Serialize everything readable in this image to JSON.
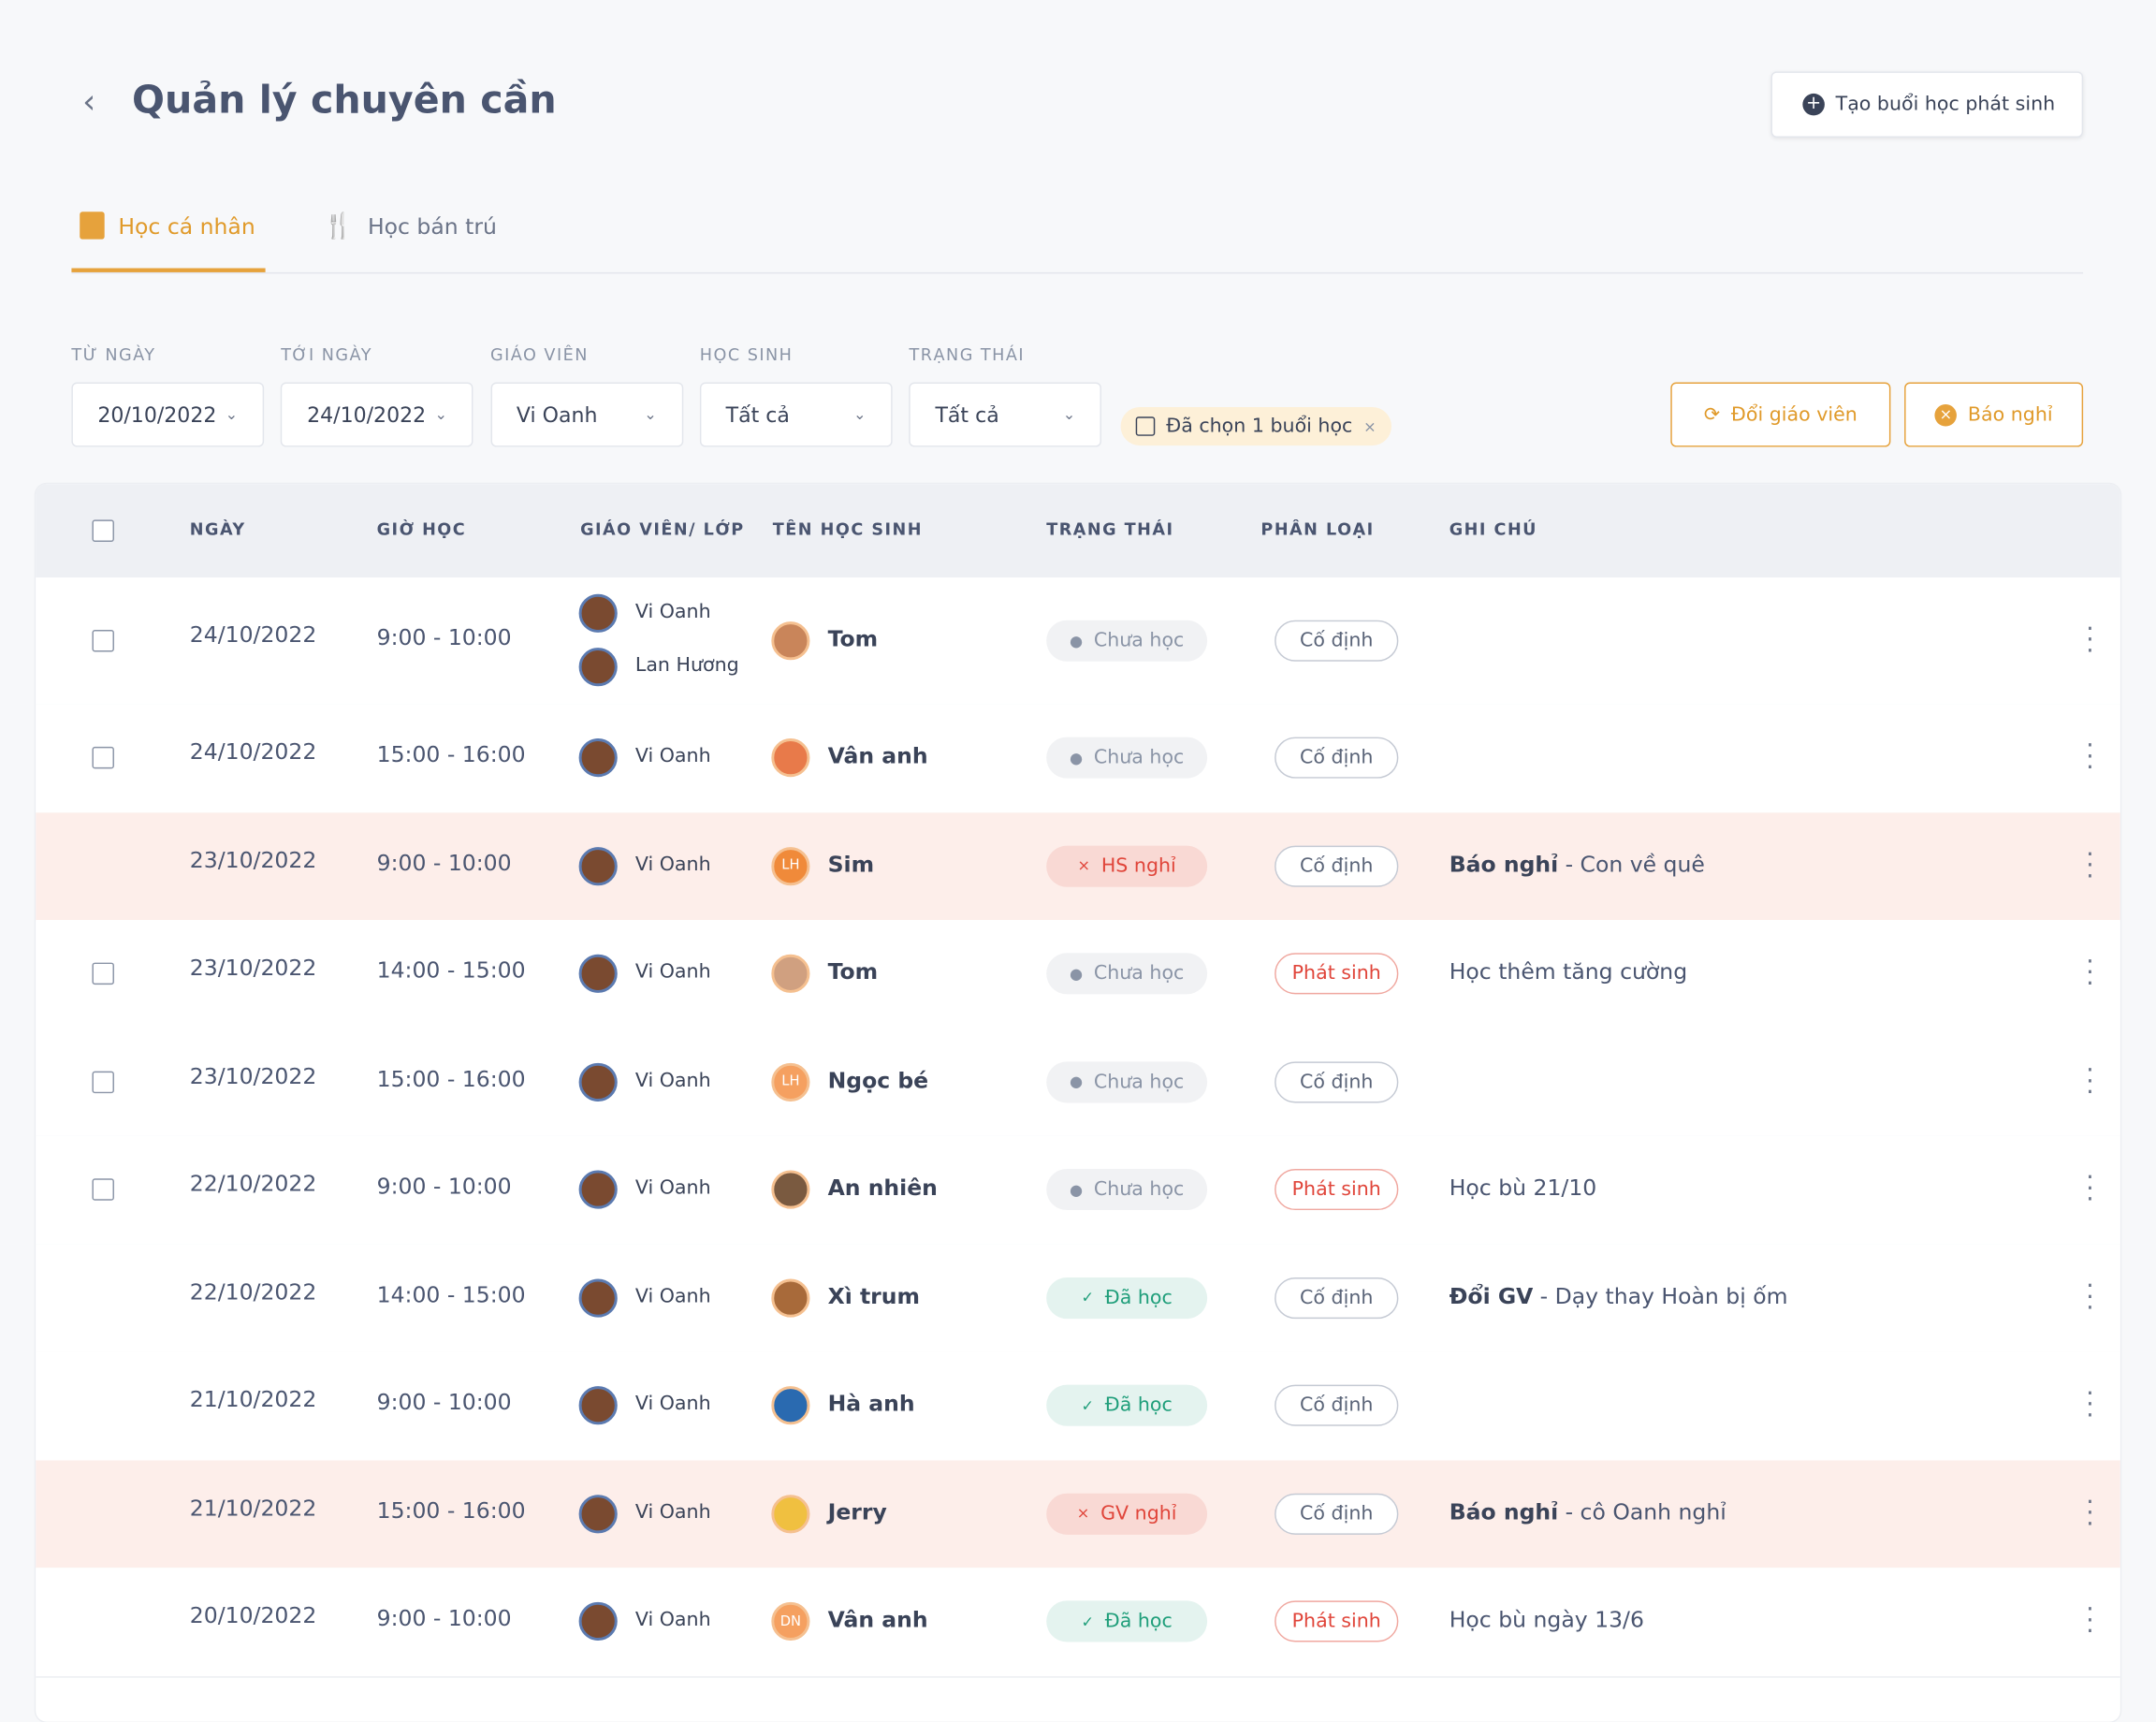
{
  "header": {
    "title": "Quản lý chuyên cần",
    "create_button": "Tạo buổi học phát sinh"
  },
  "tabs": [
    "Học cá nhân",
    "Học bán trú"
  ],
  "filters": [
    {
      "label": "TỪ NGÀY",
      "value": "20/10/2022"
    },
    {
      "label": "TỚI NGÀY",
      "value": "24/10/2022"
    },
    {
      "label": "GIÁO VIÊN",
      "value": "Vi Oanh"
    },
    {
      "label": "HỌC SINH",
      "value": "Tất cả"
    },
    {
      "label": "TRẠNG THÁI",
      "value": "Tất cả"
    }
  ],
  "selected_chip": "Đã chọn 1 buổi học",
  "actions": [
    "Đổi giáo viên",
    "Báo nghỉ"
  ],
  "table": {
    "columns": [
      "NGÀY",
      "GIỜ HỌC",
      "GIÁO VIÊN/ LỚP",
      "TÊN HỌC SINH",
      "TRẠNG THÁI",
      "PHÂN LOẠI",
      "GHI CHÚ"
    ],
    "rows": [
      {
        "date": "24/10/2022",
        "time": "9:00 - 10:00",
        "teachers": [
          "Vi Oanh",
          "Lan Hương"
        ],
        "student": "Tom",
        "status": "Chưa học",
        "status_color": "#8a94a6",
        "type": "Cố định",
        "type_color": "#5a6478",
        "selectable": true,
        "highlight": false
      },
      {
        "date": "24/10/2022",
        "time": "15:00 - 16:00",
        "teachers": [
          "Vi Oanh"
        ],
        "student": "Vân anh",
        "status": "Chưa học",
        "status_color": "#8a94a6",
        "type": "Cố định",
        "type_color": "#5a6478",
        "selectable": true,
        "highlight": false
      },
      {
        "date": "23/10/2022",
        "time": "9:00 - 10:00",
        "teachers": [
          "Vi Oanh"
        ],
        "student": "Sim",
        "initials": "LH",
        "status": "HS nghỉ",
        "status_color": "#e0453a",
        "type": "Cố định",
        "type_color": "#5a6478",
        "note_bold": "Báo nghỉ",
        "note": "- Con về quê",
        "selectable": false,
        "highlight": true
      },
      {
        "date": "23/10/2022",
        "time": "14:00 - 15:00",
        "teachers": [
          "Vi Oanh"
        ],
        "student": "Tom",
        "status": "Chưa học",
        "status_color": "#8a94a6",
        "type": "Phát sinh",
        "type_color": "#e0453a",
        "note": "Học thêm tăng cường",
        "selectable": true,
        "highlight": false
      },
      {
        "date": "23/10/2022",
        "time": "15:00 - 16:00",
        "teachers": [
          "Vi Oanh"
        ],
        "student": "Ngọc bé",
        "initials": "LH",
        "status": "Chưa học",
        "status_color": "#8a94a6",
        "type": "Cố định",
        "type_color": "#5a6478",
        "selectable": true,
        "highlight": false
      },
      {
        "date": "22/10/2022",
        "time": "9:00 - 10:00",
        "teachers": [
          "Vi Oanh"
        ],
        "student": "An nhiên",
        "status": "Chưa học",
        "status_color": "#8a94a6",
        "type": "Phát sinh",
        "type_color": "#e0453a",
        "note": "Học bù 21/10",
        "selectable": true,
        "highlight": false
      },
      {
        "date": "22/10/2022",
        "time": "14:00 - 15:00",
        "teachers": [
          "Vi Oanh"
        ],
        "student": "Xì trum",
        "status": "Đã học",
        "status_color": "#1f9e7a",
        "type": "Cố định",
        "type_color": "#5a6478",
        "note_bold": "Đổi GV",
        "note": "- Dạy thay Hoàn bị ốm",
        "selectable": false,
        "highlight": false
      },
      {
        "date": "21/10/2022",
        "time": "9:00 - 10:00",
        "teachers": [
          "Vi Oanh"
        ],
        "student": "Hà anh",
        "status": "Đã học",
        "status_color": "#1f9e7a",
        "type": "Cố định",
        "type_color": "#5a6478",
        "selectable": false,
        "highlight": false
      },
      {
        "date": "21/10/2022",
        "time": "15:00 - 16:00",
        "teachers": [
          "Vi Oanh"
        ],
        "student": "Jerry",
        "status": "GV nghỉ",
        "status_color": "#e0453a",
        "type": "Cố định",
        "type_color": "#5a6478",
        "note_bold": "Báo nghỉ",
        "note": "- cô Oanh nghỉ",
        "selectable": false,
        "highlight": true
      },
      {
        "date": "20/10/2022",
        "time": "9:00 - 10:00",
        "teachers": [
          "Vi Oanh"
        ],
        "student": "Vân anh",
        "initials": "DN",
        "status": "Đã học",
        "status_color": "#1f9e7a",
        "type": "Phát sinh",
        "type_color": "#e0453a",
        "note": "Học bù ngày 13/6",
        "selectable": false,
        "highlight": false
      }
    ]
  }
}
